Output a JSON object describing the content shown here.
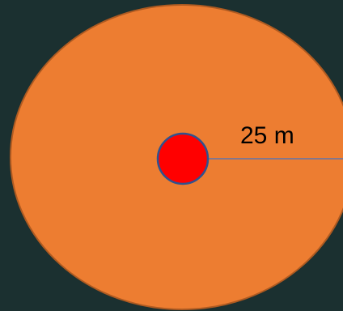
{
  "diagram": {
    "radius_label": "25 m"
  },
  "colors": {
    "background": "#1b3030",
    "outer_circle_fill": "#ed7d31",
    "outer_circle_stroke": "#ae5a21",
    "center_dot_fill": "#ff0000",
    "center_dot_stroke": "#2f528f",
    "radius_line": "#4472c4",
    "label_text": "#000000"
  }
}
